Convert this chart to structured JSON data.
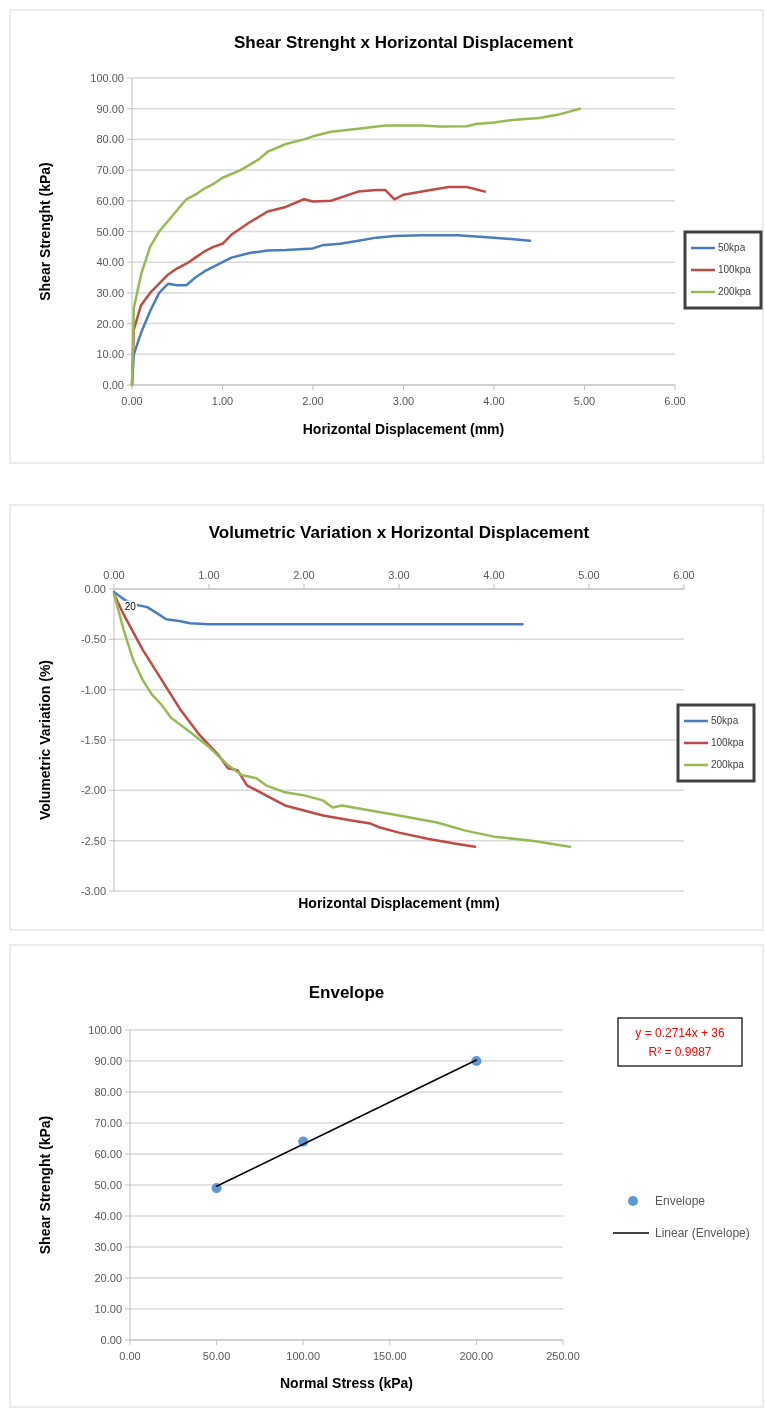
{
  "chart_data": [
    {
      "type": "line",
      "title": "Shear Strenght x Horizontal Displacement",
      "xlabel": "Horizontal Displacement (mm)",
      "ylabel": "Shear Strenght (kPa)",
      "xlim": [
        0,
        6
      ],
      "ylim": [
        0,
        100
      ],
      "xticks": [
        {
          "value": 0,
          "label": "0.00"
        },
        {
          "value": 1,
          "label": "1.00"
        },
        {
          "value": 2,
          "label": "2.00"
        },
        {
          "value": 3,
          "label": "3.00"
        },
        {
          "value": 4,
          "label": "4.00"
        },
        {
          "value": 5,
          "label": "5.00"
        },
        {
          "value": 6,
          "label": "6.00"
        }
      ],
      "yticks": [
        {
          "value": 0,
          "label": "0.00"
        },
        {
          "value": 10,
          "label": "10.00"
        },
        {
          "value": 20,
          "label": "20.00"
        },
        {
          "value": 30,
          "label": "30.00"
        },
        {
          "value": 40,
          "label": "40.00"
        },
        {
          "value": 50,
          "label": "50.00"
        },
        {
          "value": 60,
          "label": "60.00"
        },
        {
          "value": 70,
          "label": "70.00"
        },
        {
          "value": 80,
          "label": "80.00"
        },
        {
          "value": 90,
          "label": "90.00"
        },
        {
          "value": 100,
          "label": "100.00"
        }
      ],
      "grid": "y",
      "legend": "right",
      "series": [
        {
          "name": "50kpa",
          "color": "#4a7ebb",
          "x": [
            0,
            0.02,
            0.1,
            0.2,
            0.3,
            0.4,
            0.5,
            0.6,
            0.7,
            0.8,
            1.0,
            1.1,
            1.3,
            1.5,
            1.7,
            2.0,
            2.1,
            2.3,
            2.5,
            2.7,
            2.9,
            3.2,
            3.6,
            4.0,
            4.4
          ],
          "values": [
            0,
            10,
            17,
            24,
            30,
            33,
            32.5,
            32.5,
            35,
            37,
            40,
            41.5,
            43,
            43.8,
            44,
            44.5,
            45.5,
            46,
            47,
            48,
            48.5,
            48.8,
            48.8,
            48,
            47
          ]
        },
        {
          "name": "100kpa",
          "color": "#be4b48",
          "x": [
            0,
            0.02,
            0.1,
            0.2,
            0.3,
            0.4,
            0.5,
            0.6,
            0.7,
            0.8,
            0.9,
            1.0,
            1.1,
            1.2,
            1.3,
            1.5,
            1.7,
            1.9,
            2.0,
            2.2,
            2.4,
            2.5,
            2.7,
            2.8,
            2.9,
            3.0,
            3.3,
            3.5,
            3.7,
            3.9
          ],
          "values": [
            0,
            18,
            26,
            30,
            33,
            36,
            38,
            39.5,
            41.5,
            43.5,
            45,
            46,
            49,
            51,
            53,
            56.5,
            58,
            60.5,
            59.8,
            60,
            62,
            63,
            63.5,
            63.5,
            60.5,
            62,
            63.5,
            64.5,
            64.5,
            63
          ]
        },
        {
          "name": "200kpa",
          "color": "#98b954",
          "x": [
            0,
            0.02,
            0.1,
            0.2,
            0.3,
            0.4,
            0.5,
            0.6,
            0.7,
            0.8,
            0.9,
            1.0,
            1.2,
            1.4,
            1.5,
            1.7,
            1.9,
            2.0,
            2.2,
            2.5,
            2.8,
            3.0,
            3.2,
            3.4,
            3.7,
            3.8,
            4.0,
            4.2,
            4.5,
            4.7,
            4.95
          ],
          "values": [
            0,
            25,
            36,
            45,
            50,
            53.5,
            57,
            60.5,
            62,
            64,
            65.5,
            67.5,
            70,
            73.5,
            76,
            78.5,
            80,
            81,
            82.5,
            83.5,
            84.5,
            84.5,
            84.5,
            84.2,
            84.3,
            85,
            85.5,
            86.3,
            87,
            88,
            90
          ]
        }
      ]
    },
    {
      "type": "line",
      "title": "Volumetric Variation x Horizontal Displacement",
      "xlabel": "Horizontal Displacement (mm)",
      "ylabel": "Volumetric Variation (%)",
      "xlim": [
        0,
        6
      ],
      "ylim": [
        -3,
        0
      ],
      "xticks": [
        {
          "value": 0,
          "label": "0.00"
        },
        {
          "value": 1,
          "label": "1.00"
        },
        {
          "value": 2,
          "label": "2.00"
        },
        {
          "value": 3,
          "label": "3.00"
        },
        {
          "value": 4,
          "label": "4.00"
        },
        {
          "value": 5,
          "label": "5.00"
        },
        {
          "value": 6,
          "label": "6.00"
        }
      ],
      "yticks": [
        {
          "value": -3,
          "label": "-3.00"
        },
        {
          "value": -2.5,
          "label": "-2.50"
        },
        {
          "value": -2,
          "label": "-2.00"
        },
        {
          "value": -1.5,
          "label": "-1.50"
        },
        {
          "value": -1,
          "label": "-1.00"
        },
        {
          "value": -0.5,
          "label": "-0.50"
        },
        {
          "value": 0,
          "label": "0.00"
        }
      ],
      "grid": "y",
      "legend": "right",
      "annotations": [
        {
          "text": "20",
          "x": 0.05,
          "y": -0.17
        }
      ],
      "series": [
        {
          "name": "50kpa",
          "color": "#4a7ebb",
          "x": [
            0,
            0.1,
            0.2,
            0.35,
            0.45,
            0.55,
            0.7,
            0.8,
            1.0,
            4.3
          ],
          "values": [
            -0.03,
            -0.1,
            -0.15,
            -0.18,
            -0.24,
            -0.3,
            -0.32,
            -0.34,
            -0.35,
            -0.35
          ]
        },
        {
          "name": "100kpa",
          "color": "#be4b48",
          "x": [
            0,
            0.1,
            0.3,
            0.5,
            0.7,
            0.9,
            1.1,
            1.2,
            1.3,
            1.4,
            1.6,
            1.8,
            2.0,
            2.2,
            2.5,
            2.7,
            2.8,
            3.0,
            3.3,
            3.6,
            3.8
          ],
          "values": [
            -0.05,
            -0.25,
            -0.6,
            -0.9,
            -1.2,
            -1.45,
            -1.65,
            -1.78,
            -1.8,
            -1.95,
            -2.05,
            -2.15,
            -2.2,
            -2.25,
            -2.3,
            -2.33,
            -2.37,
            -2.42,
            -2.48,
            -2.53,
            -2.56
          ]
        },
        {
          "name": "200kpa",
          "color": "#98b954",
          "x": [
            0,
            0.1,
            0.2,
            0.3,
            0.4,
            0.5,
            0.6,
            0.8,
            1.0,
            1.2,
            1.35,
            1.5,
            1.6,
            1.8,
            2.0,
            2.2,
            2.3,
            2.4,
            2.7,
            3.0,
            3.4,
            3.7,
            4.0,
            4.4,
            4.8
          ],
          "values": [
            -0.05,
            -0.4,
            -0.7,
            -0.9,
            -1.05,
            -1.15,
            -1.28,
            -1.42,
            -1.57,
            -1.75,
            -1.85,
            -1.88,
            -1.95,
            -2.02,
            -2.05,
            -2.1,
            -2.17,
            -2.15,
            -2.2,
            -2.25,
            -2.32,
            -2.4,
            -2.46,
            -2.5,
            -2.56
          ]
        }
      ]
    },
    {
      "type": "scatter",
      "title": "Envelope",
      "xlabel": "Normal Stress (kPa)",
      "ylabel": "Shear Strenght (kPa)",
      "xlim": [
        0,
        250
      ],
      "ylim": [
        0,
        100
      ],
      "xticks": [
        {
          "value": 0,
          "label": "0.00"
        },
        {
          "value": 50,
          "label": "50.00"
        },
        {
          "value": 100,
          "label": "100.00"
        },
        {
          "value": 150,
          "label": "150.00"
        },
        {
          "value": 200,
          "label": "200.00"
        },
        {
          "value": 250,
          "label": "250.00"
        }
      ],
      "yticks": [
        {
          "value": 0,
          "label": "0.00"
        },
        {
          "value": 10,
          "label": "10.00"
        },
        {
          "value": 20,
          "label": "20.00"
        },
        {
          "value": 30,
          "label": "30.00"
        },
        {
          "value": 40,
          "label": "40.00"
        },
        {
          "value": 50,
          "label": "50.00"
        },
        {
          "value": 60,
          "label": "60.00"
        },
        {
          "value": 70,
          "label": "70.00"
        },
        {
          "value": 80,
          "label": "80.00"
        },
        {
          "value": 90,
          "label": "90.00"
        },
        {
          "value": 100,
          "label": "100.00"
        }
      ],
      "grid": "y",
      "legend": "right",
      "annotations": [
        "y = 0.2714x + 36",
        "R² = 0.9987"
      ],
      "series": [
        {
          "name": "Envelope",
          "type": "scatter",
          "color": "#5b9bd5",
          "x": [
            50,
            100,
            200
          ],
          "values": [
            49,
            64,
            90
          ]
        },
        {
          "name": "Linear (Envelope)",
          "type": "line",
          "color": "#000000",
          "x": [
            50,
            200
          ],
          "values": [
            49.6,
            90.3
          ]
        }
      ]
    }
  ]
}
